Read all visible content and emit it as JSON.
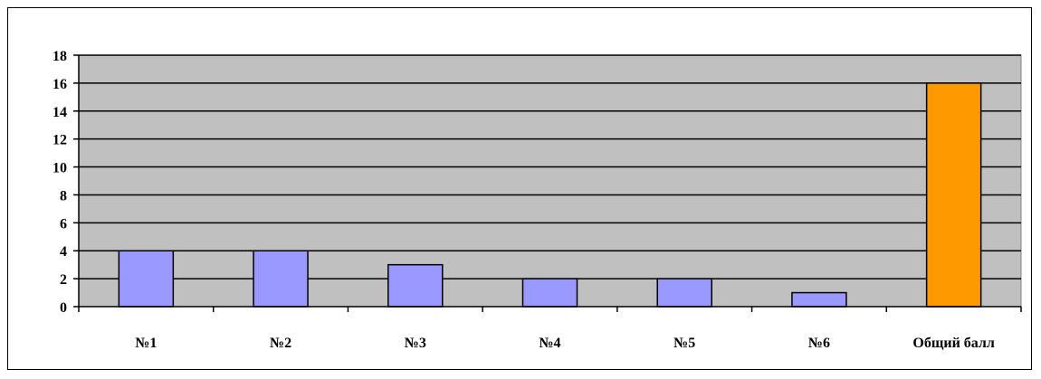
{
  "chart_data": {
    "type": "bar",
    "categories": [
      "№1",
      "№2",
      "№3",
      "№4",
      "№5",
      "№6",
      "Общий балл"
    ],
    "values": [
      4,
      4,
      3,
      2,
      2,
      1,
      16
    ],
    "ylim": [
      0,
      18
    ],
    "yticks": [
      0,
      2,
      4,
      6,
      8,
      10,
      12,
      14,
      16,
      18
    ],
    "grid": true,
    "legend": "none",
    "colors": {
      "plot_background": "#c0c0c0",
      "bar_default": "#9999ff",
      "bar_total": "#ff9900",
      "gridline": "#000000"
    },
    "bar_color_index": [
      "bar_default",
      "bar_default",
      "bar_default",
      "bar_default",
      "bar_default",
      "bar_default",
      "bar_total"
    ]
  }
}
